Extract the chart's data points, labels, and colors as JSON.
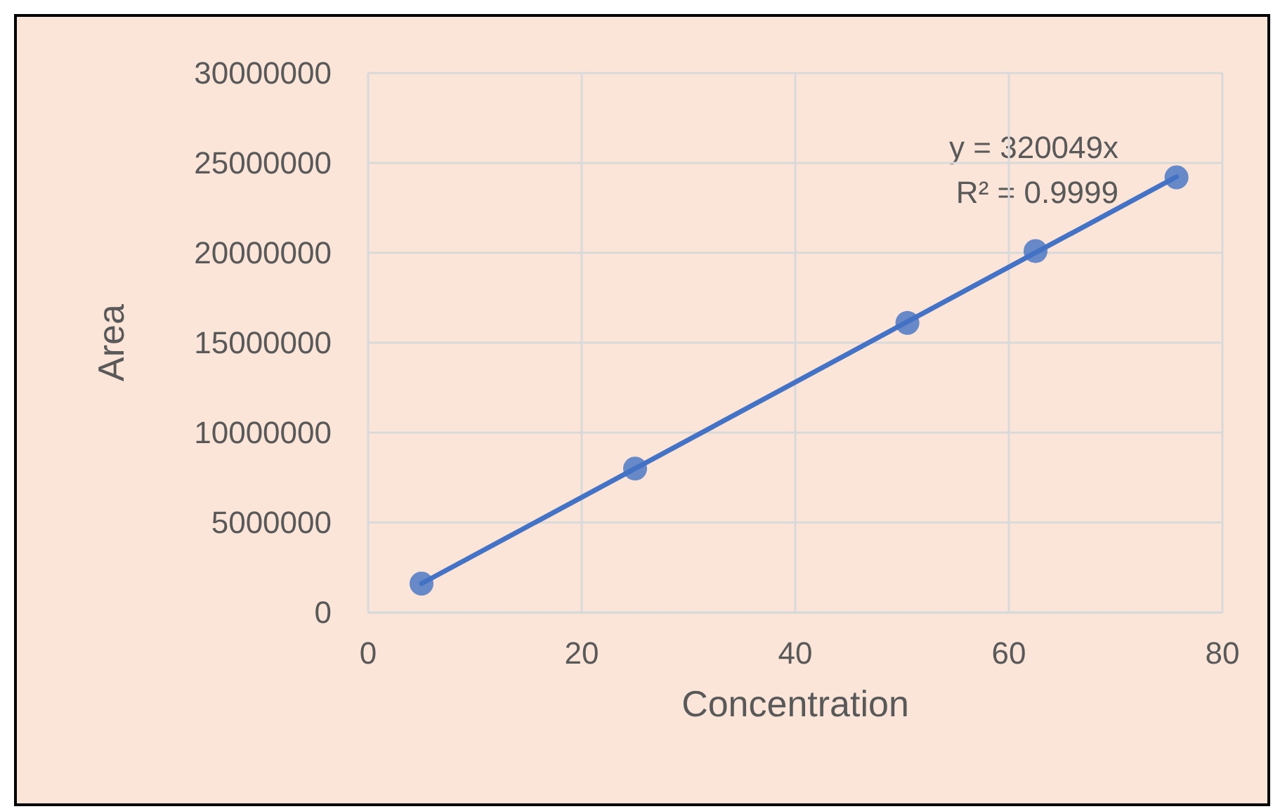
{
  "chart_data": {
    "type": "scatter",
    "xlabel": "Concentration",
    "ylabel": "Area",
    "series": [
      {
        "color": "#4472c4",
        "marker": "circle",
        "x": [
          5,
          25,
          50.5,
          62.5,
          75.7
        ],
        "values": [
          1600000,
          8000000,
          16100000,
          20100000,
          24200000
        ]
      },
      {
        "type": "line",
        "color": "#4472c4",
        "marker": "none",
        "line_style": "solid",
        "x": [
          5,
          75.7
        ],
        "values": [
          1600000,
          24230000
        ]
      }
    ],
    "annotations": [
      "y = 320049x",
      "R² = 0.9999"
    ],
    "xlim": [
      0,
      80
    ],
    "xticks": [
      0,
      20,
      40,
      60,
      80
    ],
    "ylim": [
      0,
      30000000
    ],
    "yticks": [
      0,
      5000000,
      10000000,
      15000000,
      20000000,
      25000000,
      30000000
    ],
    "grid": true
  }
}
